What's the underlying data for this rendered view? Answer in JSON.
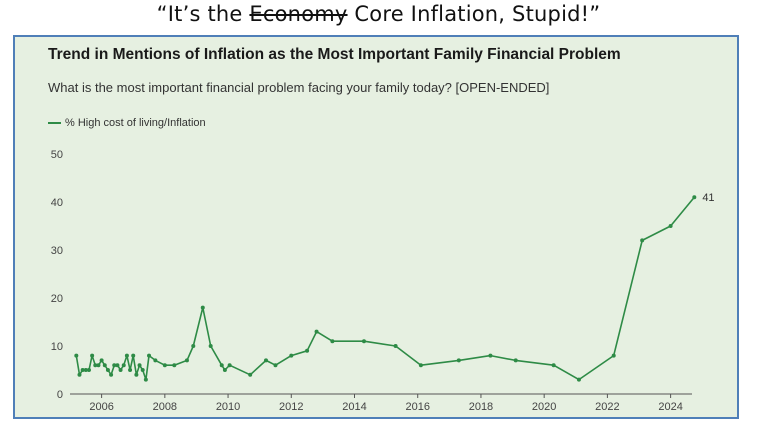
{
  "headline": {
    "prefix": "“It’s the ",
    "struck": "Economy",
    "suffix": " Core Inflation, Stupid!”"
  },
  "colors": {
    "series": "#2e8b46",
    "panel_bg": "#e6f0e1",
    "panel_border": "#4f7fb8"
  },
  "chart_data": {
    "type": "line",
    "title": "Trend in Mentions of Inflation as the Most Important Family Financial Problem",
    "subtitle": "What is the most important financial problem facing your family today? [OPEN-ENDED]",
    "legend_position": "top-left",
    "grid": false,
    "xlim": [
      2005.0,
      2024.55
    ],
    "ylim": [
      0,
      50
    ],
    "x_ticks": [
      2006,
      2008,
      2010,
      2012,
      2014,
      2016,
      2018,
      2020,
      2022,
      2024
    ],
    "y_ticks": [
      0,
      10,
      20,
      30,
      40,
      50
    ],
    "end_label": "41",
    "series": [
      {
        "name": "% High cost of living/Inflation",
        "points": [
          [
            2005.2,
            8
          ],
          [
            2005.3,
            4
          ],
          [
            2005.4,
            5
          ],
          [
            2005.5,
            5
          ],
          [
            2005.6,
            5
          ],
          [
            2005.7,
            8
          ],
          [
            2005.8,
            6
          ],
          [
            2005.9,
            6
          ],
          [
            2006.0,
            7
          ],
          [
            2006.1,
            6
          ],
          [
            2006.2,
            5
          ],
          [
            2006.3,
            4
          ],
          [
            2006.4,
            6
          ],
          [
            2006.5,
            6
          ],
          [
            2006.6,
            5
          ],
          [
            2006.7,
            6
          ],
          [
            2006.8,
            8
          ],
          [
            2006.9,
            5
          ],
          [
            2007.0,
            8
          ],
          [
            2007.1,
            4
          ],
          [
            2007.2,
            6
          ],
          [
            2007.3,
            5
          ],
          [
            2007.4,
            3
          ],
          [
            2007.5,
            8
          ],
          [
            2007.7,
            7
          ],
          [
            2008.0,
            6
          ],
          [
            2008.3,
            6
          ],
          [
            2008.7,
            7
          ],
          [
            2008.9,
            10
          ],
          [
            2009.2,
            18
          ],
          [
            2009.45,
            10
          ],
          [
            2009.8,
            6
          ],
          [
            2009.9,
            5
          ],
          [
            2010.05,
            6
          ],
          [
            2010.7,
            4
          ],
          [
            2011.2,
            7
          ],
          [
            2011.5,
            6
          ],
          [
            2012.0,
            8
          ],
          [
            2012.5,
            9
          ],
          [
            2012.8,
            13
          ],
          [
            2013.3,
            11
          ],
          [
            2014.3,
            11
          ],
          [
            2015.3,
            10
          ],
          [
            2016.1,
            6
          ],
          [
            2017.3,
            7
          ],
          [
            2018.3,
            8
          ],
          [
            2019.1,
            7
          ],
          [
            2020.3,
            6
          ],
          [
            2021.1,
            3
          ],
          [
            2022.2,
            8
          ],
          [
            2023.1,
            32
          ],
          [
            2024.0,
            35
          ],
          [
            2024.75,
            41
          ]
        ]
      }
    ]
  }
}
